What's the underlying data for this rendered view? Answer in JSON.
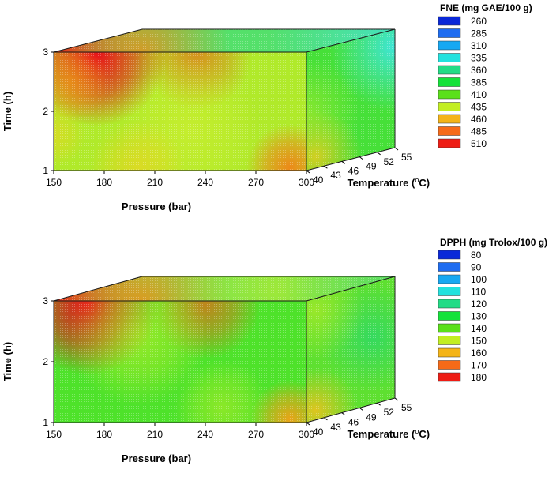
{
  "chart_data": [
    {
      "type": "heatmap",
      "style": "3d-box-contour",
      "legend_title": "FNE (mg GAE/100 g)",
      "legend_values": [
        "260",
        "285",
        "310",
        "335",
        "360",
        "385",
        "410",
        "435",
        "460",
        "485",
        "510"
      ],
      "legend_colors": [
        "#0a28d8",
        "#1e6cf0",
        "#16a8f2",
        "#22e2de",
        "#22dc86",
        "#14e23a",
        "#5ae01a",
        "#c2ee22",
        "#f4b418",
        "#f66a18",
        "#ee1c14"
      ],
      "x_axis": {
        "title": "Pressure (bar)",
        "ticks": [
          "150",
          "180",
          "210",
          "240",
          "270",
          "300"
        ],
        "range": [
          150,
          300
        ]
      },
      "y_axis": {
        "title": "Time (h)",
        "ticks": [
          "1",
          "2",
          "3"
        ],
        "range": [
          1,
          3
        ]
      },
      "z_axis": {
        "title": "Temperature (",
        "title_unit": "C)",
        "title_superscript": "o",
        "ticks": [
          "40",
          "43",
          "46",
          "49",
          "52",
          "55"
        ],
        "range": [
          40,
          55
        ]
      },
      "surfaces": {
        "front": {
          "base": "#b0ea2a",
          "spots": [
            {
              "p": 175,
              "t": 2.95,
              "color": "#e8101a",
              "radius": 90,
              "strength": 1.0
            },
            {
              "p": 235,
              "t": 2.95,
              "color": "#ef5a16",
              "radius": 70,
              "strength": 0.6
            },
            {
              "p": 160,
              "t": 2.5,
              "color": "#f5a215",
              "radius": 50,
              "strength": 0.6
            },
            {
              "p": 230,
              "t": 1.7,
              "color": "#d2f030",
              "radius": 90,
              "strength": 0.6
            },
            {
              "p": 290,
              "t": 1.05,
              "color": "#f08418",
              "radius": 55,
              "strength": 0.95
            },
            {
              "p": 200,
              "t": 1.05,
              "color": "#f5d01e",
              "radius": 60,
              "strength": 0.6
            },
            {
              "p": 150,
              "t": 1.6,
              "color": "#f2d21e",
              "radius": 40,
              "strength": 0.55
            }
          ]
        },
        "side": {
          "base": "#46e038",
          "spots": [
            {
              "u": 1.0,
              "v": 0.15,
              "color": "#3ee6e8",
              "radius": 0.55,
              "strength": 0.9
            },
            {
              "u": 0.1,
              "v": 0.9,
              "color": "#f5c81c",
              "radius": 0.4,
              "strength": 0.8
            },
            {
              "u": 0.0,
              "v": 0.5,
              "color": "#c8ee26",
              "radius": 0.45,
              "strength": 0.5
            }
          ]
        },
        "top": {
          "base": "#54e06a",
          "spots": [
            {
              "u": 0.0,
              "v": 0.0,
              "color": "#ee1c14",
              "radius": 0.35,
              "strength": 1.0
            },
            {
              "u": 0.35,
              "v": 0.0,
              "color": "#f28a16",
              "radius": 0.35,
              "strength": 0.8
            },
            {
              "u": 1.0,
              "v": 1.0,
              "color": "#3ee2e2",
              "radius": 0.5,
              "strength": 0.7
            }
          ]
        }
      }
    },
    {
      "type": "heatmap",
      "style": "3d-box-contour",
      "legend_title": "DPPH (mg Trolox/100 g)",
      "legend_values": [
        "80",
        "90",
        "100",
        "110",
        "120",
        "130",
        "140",
        "150",
        "160",
        "170",
        "180"
      ],
      "legend_colors": [
        "#0a28d8",
        "#1e6cf0",
        "#16a8f2",
        "#22e2de",
        "#22dc86",
        "#14e23a",
        "#5ae01a",
        "#c2ee22",
        "#f4b418",
        "#f66a18",
        "#ee1c14"
      ],
      "x_axis": {
        "title": "Pressure (bar)",
        "ticks": [
          "150",
          "180",
          "210",
          "240",
          "270",
          "300"
        ],
        "range": [
          150,
          300
        ]
      },
      "y_axis": {
        "title": "Time (h)",
        "ticks": [
          "1",
          "2",
          "3"
        ],
        "range": [
          1,
          3
        ]
      },
      "z_axis": {
        "title": "Temperature (",
        "title_unit": "C)",
        "title_superscript": "o",
        "ticks": [
          "40",
          "43",
          "46",
          "49",
          "52",
          "55"
        ],
        "range": [
          40,
          55
        ]
      },
      "surfaces": {
        "front": {
          "base": "#4ee22a",
          "spots": [
            {
              "p": 170,
              "t": 2.95,
              "color": "#e8101a",
              "radius": 90,
              "strength": 1.0
            },
            {
              "p": 240,
              "t": 2.95,
              "color": "#f05e16",
              "radius": 70,
              "strength": 0.7
            },
            {
              "p": 200,
              "t": 2.45,
              "color": "#c6ee26",
              "radius": 90,
              "strength": 0.6
            },
            {
              "p": 290,
              "t": 1.05,
              "color": "#f2a017",
              "radius": 50,
              "strength": 0.95
            },
            {
              "p": 250,
              "t": 1.25,
              "color": "#c8ee26",
              "radius": 60,
              "strength": 0.5
            }
          ]
        },
        "side": {
          "base": "#5ee030",
          "spots": [
            {
              "u": 0.75,
              "v": 0.45,
              "color": "#2ad86a",
              "radius": 0.45,
              "strength": 0.8
            },
            {
              "u": 0.1,
              "v": 0.92,
              "color": "#f5c01c",
              "radius": 0.35,
              "strength": 0.85
            },
            {
              "u": 0.1,
              "v": 0.1,
              "color": "#c8ee26",
              "radius": 0.4,
              "strength": 0.55
            }
          ]
        },
        "top": {
          "base": "#78e250",
          "spots": [
            {
              "u": 0.0,
              "v": 0.0,
              "color": "#ee1c14",
              "radius": 0.35,
              "strength": 1.0
            },
            {
              "u": 0.35,
              "v": 0.0,
              "color": "#f28a16",
              "radius": 0.35,
              "strength": 0.8
            },
            {
              "u": 0.7,
              "v": 0.5,
              "color": "#c2ee22",
              "radius": 0.4,
              "strength": 0.5
            },
            {
              "u": 1.0,
              "v": 1.0,
              "color": "#3ed870",
              "radius": 0.45,
              "strength": 0.5
            }
          ]
        }
      }
    }
  ]
}
